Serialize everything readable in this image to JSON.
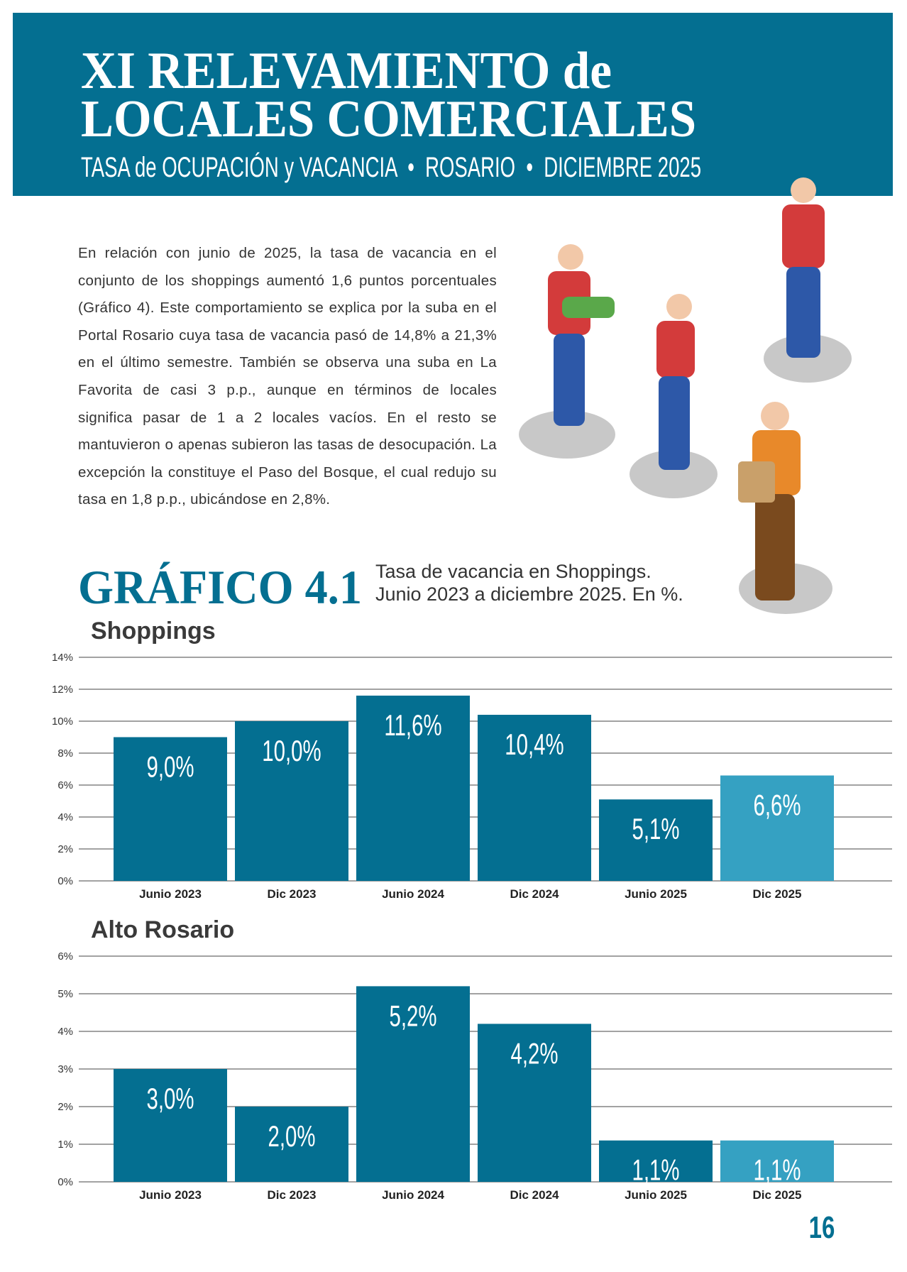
{
  "header": {
    "title_line1": "XI RELEVAMIENTO de",
    "title_line2": "LOCALES COMERCIALES",
    "subtitle": "TASA de OCUPACIÓN y VACANCIA  •  ROSARIO  •  DICIEMBRE 2025"
  },
  "body": {
    "paragraph": "En relación con junio de 2025, la tasa de vacancia en el conjunto de los shoppings aumentó 1,6 puntos porcentuales (Gráfico 4). Este comportamiento se explica por la suba en el Portal Rosario cuya tasa de vacancia pasó de 14,8% a 21,3% en el último semestre. También se observa una suba en La Favorita de casi 3 p.p., aunque en términos de locales significa pasar de 1 a 2 locales vacíos. En el resto se mantuvieron o apenas subieron las tasas de desocupación. La excepción la constituye el Paso del Bosque, el cual redujo su tasa en 1,8 p.p., ubicándose en 2,8%."
  },
  "figure": {
    "label": "GRÁFICO 4.1",
    "caption_line1": "Tasa de vacancia en Shoppings.",
    "caption_line2": "Junio 2023 a diciembre 2025. En %."
  },
  "chart_data": [
    {
      "type": "bar",
      "title": "Shoppings",
      "categories": [
        "Junio 2023",
        "Dic 2023",
        "Junio 2024",
        "Dic 2024",
        "Junio 2025",
        "Dic 2025"
      ],
      "values": [
        9.0,
        10.0,
        11.6,
        10.4,
        5.1,
        6.6
      ],
      "value_labels": [
        "9,0%",
        "10,0%",
        "11,6%",
        "10,4%",
        "5,1%",
        "6,6%"
      ],
      "colors": [
        "#046f91",
        "#046f91",
        "#046f91",
        "#046f91",
        "#046f91",
        "#35a1c2"
      ],
      "ylim": [
        0,
        14
      ],
      "yticks": [
        {
          "value": 0,
          "label": "0%"
        },
        {
          "value": 2,
          "label": "2%"
        },
        {
          "value": 4,
          "label": "4%"
        },
        {
          "value": 6,
          "label": "6%"
        },
        {
          "value": 8,
          "label": "8%"
        },
        {
          "value": 10,
          "label": "10%"
        },
        {
          "value": 12,
          "label": "12%"
        },
        {
          "value": 14,
          "label": "14%"
        }
      ],
      "grid": true
    },
    {
      "type": "bar",
      "title": "Alto Rosario",
      "categories": [
        "Junio 2023",
        "Dic 2023",
        "Junio 2024",
        "Dic 2024",
        "Junio 2025",
        "Dic 2025"
      ],
      "values": [
        3.0,
        2.0,
        5.2,
        4.2,
        1.1,
        1.1
      ],
      "value_labels": [
        "3,0%",
        "2,0%",
        "5,2%",
        "4,2%",
        "1,1%",
        "1,1%"
      ],
      "colors": [
        "#046f91",
        "#046f91",
        "#046f91",
        "#046f91",
        "#046f91",
        "#35a1c2"
      ],
      "ylim": [
        0,
        6
      ],
      "yticks": [
        {
          "value": 0,
          "label": "0%"
        },
        {
          "value": 1,
          "label": "1%"
        },
        {
          "value": 2,
          "label": "2%"
        },
        {
          "value": 3,
          "label": "3%"
        },
        {
          "value": 4,
          "label": "4%"
        },
        {
          "value": 5,
          "label": "5%"
        },
        {
          "value": 6,
          "label": "6%"
        }
      ],
      "grid": true
    }
  ],
  "page_number": 16
}
